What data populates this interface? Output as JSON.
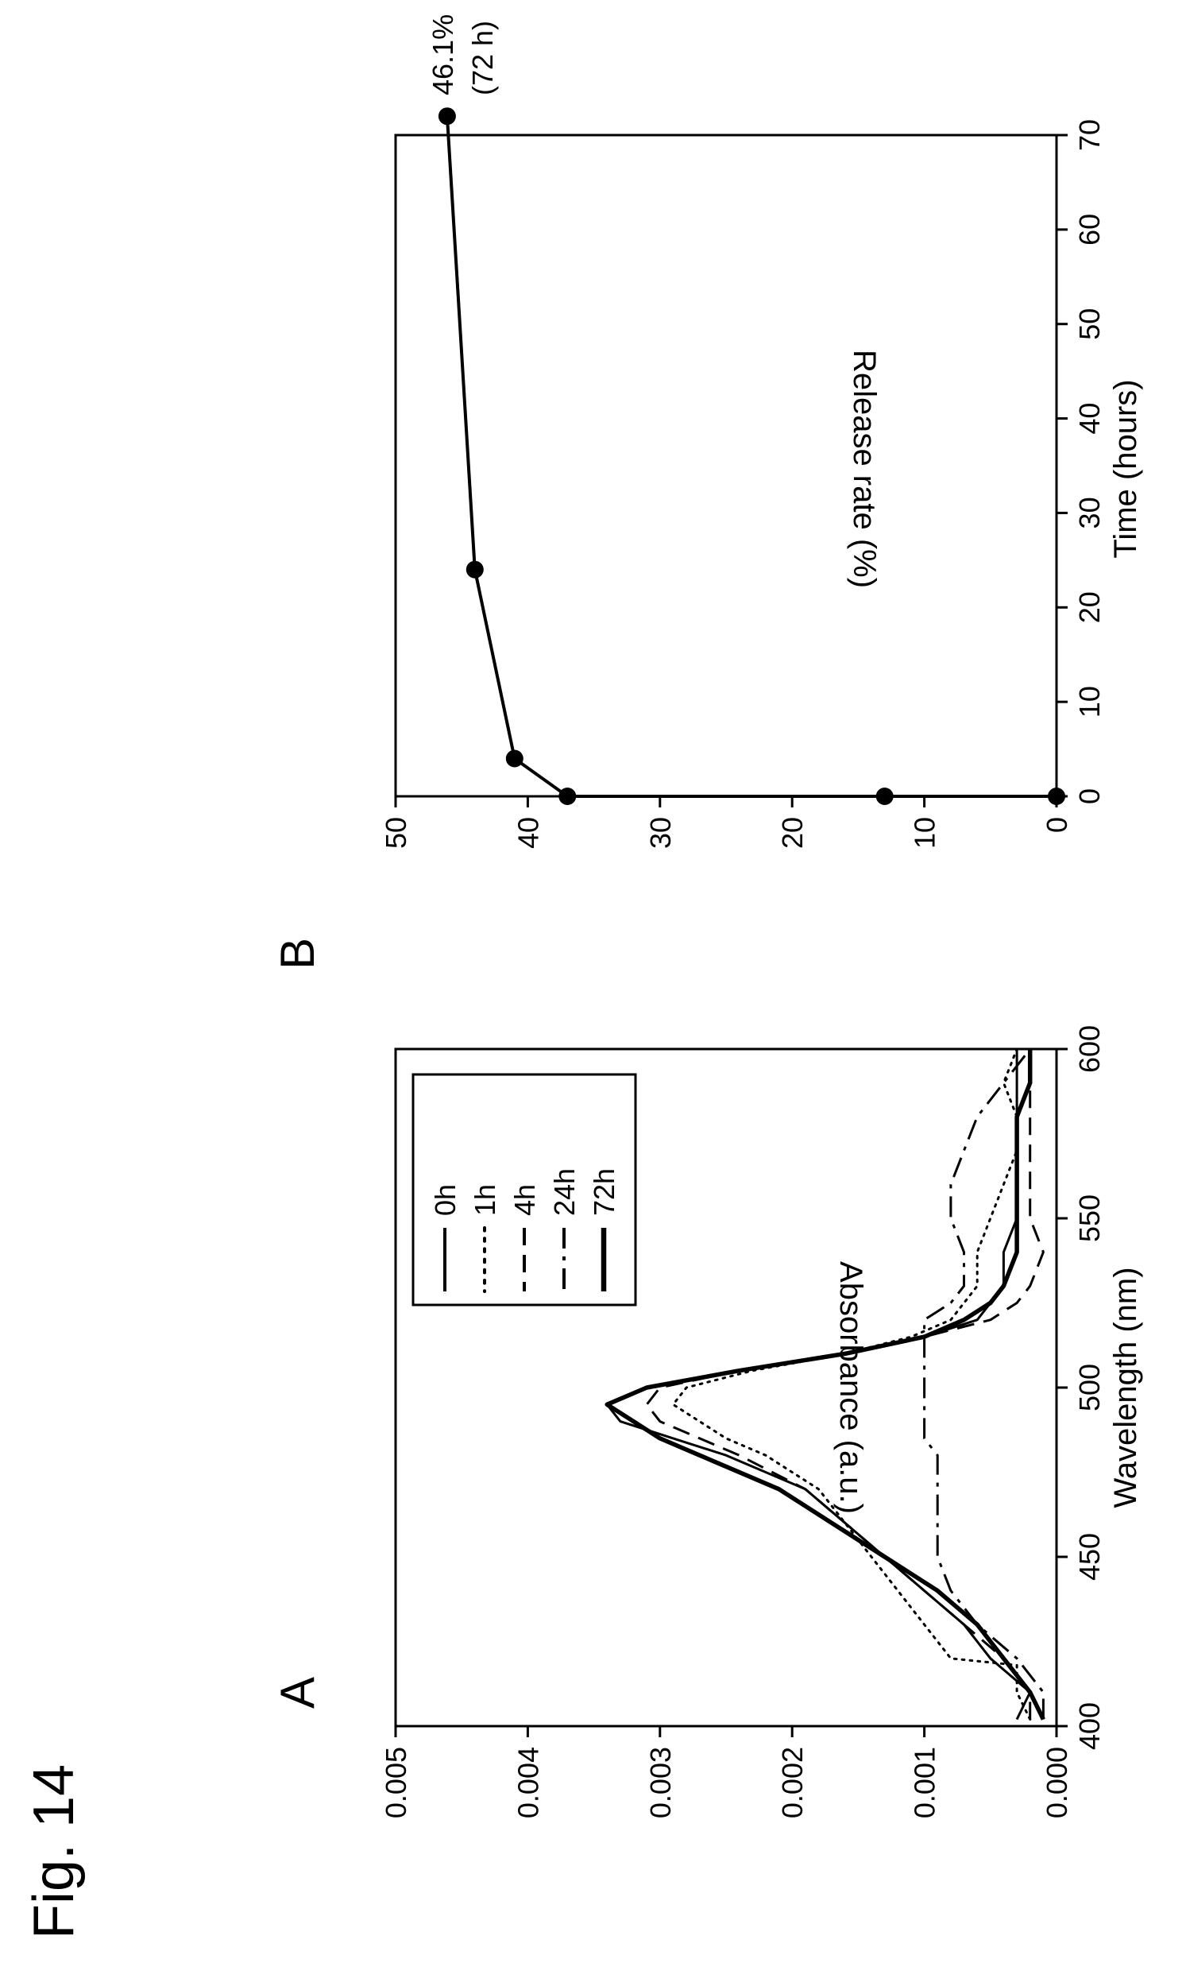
{
  "figure_title": "Fig. 14",
  "panels": {
    "a_label": "A",
    "b_label": "B"
  },
  "chart_data": [
    {
      "panel": "A",
      "type": "line",
      "xlabel": "Wavelength (nm)",
      "ylabel": "Absorbance (a.u.)",
      "xlim": [
        400,
        600
      ],
      "ylim": [
        0.0,
        0.005
      ],
      "xticks": [
        "400",
        "450",
        "500",
        "550",
        "600"
      ],
      "yticks": [
        "0.000",
        "0.001",
        "0.002",
        "0.003",
        "0.004",
        "0.005"
      ],
      "legend_position": "top-right",
      "series": [
        {
          "name": "0h",
          "dash": "solid",
          "width": 3,
          "x": [
            402,
            410,
            420,
            430,
            440,
            450,
            460,
            470,
            480,
            485,
            490,
            495,
            500,
            505,
            510,
            515,
            520,
            525,
            530,
            540,
            550,
            560,
            570,
            580,
            590,
            600
          ],
          "y": [
            0.0003,
            0.0002,
            0.0005,
            0.0007,
            0.001,
            0.0013,
            0.0016,
            0.0019,
            0.0025,
            0.0029,
            0.0033,
            0.0034,
            0.0031,
            0.0024,
            0.0016,
            0.001,
            0.0006,
            0.0005,
            0.0004,
            0.0004,
            0.0003,
            0.0003,
            0.0003,
            0.0003,
            0.0003,
            0.0003
          ]
        },
        {
          "name": "1h",
          "dash": "dotted",
          "width": 3,
          "x": [
            402,
            410,
            418,
            420,
            430,
            440,
            450,
            460,
            470,
            480,
            485,
            490,
            495,
            500,
            505,
            510,
            515,
            520,
            525,
            530,
            540,
            550,
            560,
            570,
            580,
            590,
            600
          ],
          "y": [
            0.0002,
            0.0003,
            0.0003,
            0.0008,
            0.001,
            0.0012,
            0.0014,
            0.0016,
            0.0018,
            0.0022,
            0.0025,
            0.0027,
            0.0029,
            0.0028,
            0.0023,
            0.0016,
            0.0011,
            0.0008,
            0.0007,
            0.0006,
            0.0006,
            0.0005,
            0.0004,
            0.0003,
            0.0003,
            0.0004,
            0.0003
          ]
        },
        {
          "name": "4h",
          "dash": "dashed",
          "width": 3,
          "x": [
            402,
            410,
            420,
            430,
            440,
            450,
            460,
            470,
            480,
            485,
            490,
            495,
            500,
            505,
            510,
            515,
            520,
            525,
            530,
            540,
            550,
            560,
            570,
            580,
            590,
            600
          ],
          "y": [
            0.0002,
            0.0002,
            0.0004,
            0.0007,
            0.001,
            0.0013,
            0.0016,
            0.0019,
            0.0024,
            0.0027,
            0.003,
            0.0031,
            0.003,
            0.0024,
            0.0016,
            0.001,
            0.0005,
            0.0003,
            0.0002,
            0.0001,
            0.0002,
            0.0002,
            0.0002,
            0.0002,
            0.0002,
            0.0002
          ]
        },
        {
          "name": "24h",
          "dash": "dashdot",
          "width": 3,
          "x": [
            402,
            410,
            420,
            430,
            440,
            450,
            460,
            470,
            480,
            485,
            490,
            495,
            500,
            505,
            510,
            515,
            520,
            525,
            530,
            540,
            550,
            560,
            570,
            580,
            590,
            600
          ],
          "y": [
            0.0001,
            0.0001,
            0.0003,
            0.0006,
            0.0008,
            0.0009,
            0.0009,
            0.0009,
            0.0009,
            0.001,
            0.001,
            0.001,
            0.001,
            0.001,
            0.001,
            0.001,
            0.001,
            0.0008,
            0.0007,
            0.0007,
            0.0008,
            0.0008,
            0.0007,
            0.0006,
            0.0004,
            0.0002
          ]
        },
        {
          "name": "72h",
          "dash": "solid",
          "width": 5.5,
          "x": [
            402,
            410,
            420,
            430,
            440,
            450,
            460,
            470,
            480,
            485,
            490,
            495,
            500,
            505,
            510,
            515,
            520,
            525,
            530,
            540,
            550,
            560,
            570,
            580,
            590,
            600
          ],
          "y": [
            0.0001,
            0.0002,
            0.0004,
            0.0006,
            0.0009,
            0.0013,
            0.0017,
            0.0021,
            0.0027,
            0.003,
            0.0032,
            0.0034,
            0.0031,
            0.0024,
            0.0016,
            0.001,
            0.0007,
            0.0005,
            0.0004,
            0.0003,
            0.0003,
            0.0003,
            0.0003,
            0.0003,
            0.0002,
            0.0002
          ]
        }
      ]
    },
    {
      "panel": "B",
      "type": "line",
      "xlabel": "Time (hours)",
      "ylabel": "Release rate (%)",
      "xlim": [
        0,
        70
      ],
      "ylim": [
        0,
        50
      ],
      "xticks": [
        "0",
        "10",
        "20",
        "30",
        "40",
        "50",
        "60",
        "70"
      ],
      "yticks": [
        "0",
        "10",
        "20",
        "30",
        "40",
        "50"
      ],
      "annotation": [
        "46.1%",
        "(72 h)"
      ],
      "series": [
        {
          "x": [
            0,
            0,
            0,
            4,
            24,
            72
          ],
          "y": [
            0,
            13,
            37,
            41,
            44,
            46.1
          ],
          "marker": "circle"
        }
      ]
    }
  ]
}
